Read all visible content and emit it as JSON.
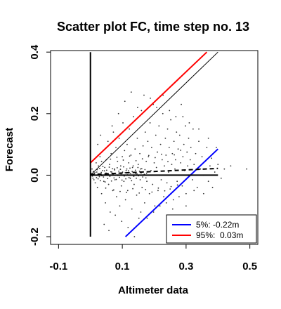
{
  "chart_data": {
    "type": "scatter",
    "title": "Scatter plot FC, time step no. 13",
    "xlabel": "Altimeter data",
    "ylabel": "Forecast",
    "xlim": [
      -0.125,
      0.525
    ],
    "ylim": [
      -0.225,
      0.405
    ],
    "xticks": [
      -0.1,
      0.1,
      0.3,
      0.5
    ],
    "xtick_labels": [
      "-0.1",
      "0.1",
      "0.3",
      "0.5"
    ],
    "yticks": [
      -0.2,
      0.0,
      0.2,
      0.4
    ],
    "ytick_labels": [
      "-0.2",
      "0.0",
      "0.2",
      "0.4"
    ],
    "grid": false,
    "legend_position": "bottom-right",
    "lines": [
      {
        "name": "5%: -0.22m",
        "color": "#0000ff",
        "x": [
          0.11,
          0.4
        ],
        "y": [
          -0.2,
          0.085
        ]
      },
      {
        "name": "95%:  0.03m",
        "color": "#ff0000",
        "x": [
          0.0,
          0.365
        ],
        "y": [
          0.04,
          0.4
        ]
      },
      {
        "color": "#000000",
        "style": "solid-thin",
        "x": [
          0.0,
          0.4
        ],
        "y": [
          0.0,
          0.4
        ]
      },
      {
        "color": "#000000",
        "style": "solid-thick",
        "x": [
          0.0,
          0.0
        ],
        "y": [
          -0.2,
          0.4
        ]
      },
      {
        "color": "#000000",
        "style": "solid-thick",
        "x": [
          0.0,
          0.4
        ],
        "y": [
          0.0,
          0.0
        ]
      },
      {
        "color": "#000000",
        "style": "dashed",
        "x": [
          0.0,
          0.4
        ],
        "y": [
          0.002,
          0.022
        ]
      }
    ],
    "points": [
      {
        "x": 0.005,
        "y": 0.02
      },
      {
        "x": 0.008,
        "y": -0.01
      },
      {
        "x": 0.012,
        "y": 0.005
      },
      {
        "x": 0.015,
        "y": -0.025
      },
      {
        "x": 0.018,
        "y": 0.04
      },
      {
        "x": 0.02,
        "y": 0.01
      },
      {
        "x": 0.022,
        "y": -0.04
      },
      {
        "x": 0.025,
        "y": 0.03
      },
      {
        "x": 0.028,
        "y": -0.005
      },
      {
        "x": 0.03,
        "y": 0.06
      },
      {
        "x": 0.033,
        "y": 0.0
      },
      {
        "x": 0.035,
        "y": -0.06
      },
      {
        "x": 0.038,
        "y": 0.015
      },
      {
        "x": 0.04,
        "y": 0.08
      },
      {
        "x": 0.042,
        "y": -0.02
      },
      {
        "x": 0.045,
        "y": 0.025
      },
      {
        "x": 0.047,
        "y": -0.09
      },
      {
        "x": 0.05,
        "y": 0.05
      },
      {
        "x": 0.052,
        "y": 0.005
      },
      {
        "x": 0.055,
        "y": 0.11
      },
      {
        "x": 0.057,
        "y": -0.03
      },
      {
        "x": 0.06,
        "y": 0.035
      },
      {
        "x": 0.062,
        "y": -0.12
      },
      {
        "x": 0.065,
        "y": 0.07
      },
      {
        "x": 0.067,
        "y": 0.01
      },
      {
        "x": 0.07,
        "y": -0.05
      },
      {
        "x": 0.072,
        "y": 0.14
      },
      {
        "x": 0.075,
        "y": 0.02
      },
      {
        "x": 0.077,
        "y": -0.015
      },
      {
        "x": 0.08,
        "y": 0.09
      },
      {
        "x": 0.082,
        "y": -0.07
      },
      {
        "x": 0.085,
        "y": 0.045
      },
      {
        "x": 0.087,
        "y": 0.0
      },
      {
        "x": 0.09,
        "y": 0.12
      },
      {
        "x": 0.092,
        "y": -0.1
      },
      {
        "x": 0.095,
        "y": 0.03
      },
      {
        "x": 0.097,
        "y": -0.035
      },
      {
        "x": 0.1,
        "y": 0.06
      },
      {
        "x": 0.102,
        "y": 0.17
      },
      {
        "x": 0.105,
        "y": -0.02
      },
      {
        "x": 0.107,
        "y": 0.08
      },
      {
        "x": 0.11,
        "y": -0.08
      },
      {
        "x": 0.112,
        "y": 0.015
      },
      {
        "x": 0.115,
        "y": 0.1
      },
      {
        "x": 0.117,
        "y": -0.05
      },
      {
        "x": 0.12,
        "y": 0.04
      },
      {
        "x": 0.122,
        "y": 0.15
      },
      {
        "x": 0.125,
        "y": -0.01
      },
      {
        "x": 0.127,
        "y": 0.065
      },
      {
        "x": 0.13,
        "y": -0.11
      },
      {
        "x": 0.132,
        "y": 0.025
      },
      {
        "x": 0.135,
        "y": 0.19
      },
      {
        "x": 0.137,
        "y": -0.03
      },
      {
        "x": 0.14,
        "y": 0.085
      },
      {
        "x": 0.142,
        "y": 0.005
      },
      {
        "x": 0.145,
        "y": -0.065
      },
      {
        "x": 0.147,
        "y": 0.12
      },
      {
        "x": 0.15,
        "y": 0.035
      },
      {
        "x": 0.152,
        "y": -0.14
      },
      {
        "x": 0.155,
        "y": 0.07
      },
      {
        "x": 0.157,
        "y": 0.02
      },
      {
        "x": 0.16,
        "y": 0.21
      },
      {
        "x": 0.162,
        "y": -0.04
      },
      {
        "x": 0.165,
        "y": 0.095
      },
      {
        "x": 0.167,
        "y": 0.0
      },
      {
        "x": 0.17,
        "y": -0.09
      },
      {
        "x": 0.172,
        "y": 0.14
      },
      {
        "x": 0.175,
        "y": 0.045
      },
      {
        "x": 0.177,
        "y": -0.02
      },
      {
        "x": 0.18,
        "y": 0.11
      },
      {
        "x": 0.182,
        "y": 0.06
      },
      {
        "x": 0.185,
        "y": -0.06
      },
      {
        "x": 0.187,
        "y": 0.17
      },
      {
        "x": 0.19,
        "y": 0.015
      },
      {
        "x": 0.192,
        "y": 0.09
      },
      {
        "x": 0.195,
        "y": -0.03
      },
      {
        "x": 0.197,
        "y": 0.23
      },
      {
        "x": 0.2,
        "y": 0.04
      },
      {
        "x": 0.202,
        "y": -0.1
      },
      {
        "x": 0.205,
        "y": 0.13
      },
      {
        "x": 0.207,
        "y": 0.025
      },
      {
        "x": 0.21,
        "y": 0.075
      },
      {
        "x": 0.212,
        "y": -0.05
      },
      {
        "x": 0.215,
        "y": 0.16
      },
      {
        "x": 0.217,
        "y": 0.0
      },
      {
        "x": 0.22,
        "y": 0.1
      },
      {
        "x": 0.222,
        "y": -0.015
      },
      {
        "x": 0.225,
        "y": 0.05
      },
      {
        "x": 0.227,
        "y": 0.2
      },
      {
        "x": 0.23,
        "y": -0.07
      },
      {
        "x": 0.232,
        "y": 0.03
      },
      {
        "x": 0.235,
        "y": 0.12
      },
      {
        "x": 0.237,
        "y": 0.065
      },
      {
        "x": 0.24,
        "y": -0.025
      },
      {
        "x": 0.242,
        "y": 0.15
      },
      {
        "x": 0.245,
        "y": 0.01
      },
      {
        "x": 0.247,
        "y": 0.09
      },
      {
        "x": 0.25,
        "y": -0.045
      },
      {
        "x": 0.252,
        "y": 0.18
      },
      {
        "x": 0.255,
        "y": 0.035
      },
      {
        "x": 0.257,
        "y": 0.07
      },
      {
        "x": 0.26,
        "y": -0.08
      },
      {
        "x": 0.262,
        "y": 0.11
      },
      {
        "x": 0.265,
        "y": 0.02
      },
      {
        "x": 0.267,
        "y": 0.05
      },
      {
        "x": 0.27,
        "y": 0.14
      },
      {
        "x": 0.272,
        "y": -0.02
      },
      {
        "x": 0.275,
        "y": 0.085
      },
      {
        "x": 0.278,
        "y": 0.0
      },
      {
        "x": 0.28,
        "y": 0.13
      },
      {
        "x": 0.283,
        "y": 0.04
      },
      {
        "x": 0.285,
        "y": 0.23
      },
      {
        "x": 0.288,
        "y": -0.035
      },
      {
        "x": 0.29,
        "y": 0.06
      },
      {
        "x": 0.293,
        "y": 0.1
      },
      {
        "x": 0.295,
        "y": 0.015
      },
      {
        "x": 0.298,
        "y": 0.16
      },
      {
        "x": 0.3,
        "y": -0.06
      },
      {
        "x": 0.303,
        "y": 0.075
      },
      {
        "x": 0.305,
        "y": 0.03
      },
      {
        "x": 0.308,
        "y": 0.12
      },
      {
        "x": 0.31,
        "y": 0.0
      },
      {
        "x": 0.313,
        "y": 0.05
      },
      {
        "x": 0.315,
        "y": 0.09
      },
      {
        "x": 0.32,
        "y": -0.015
      },
      {
        "x": 0.322,
        "y": 0.15
      },
      {
        "x": 0.325,
        "y": 0.035
      },
      {
        "x": 0.33,
        "y": 0.07
      },
      {
        "x": 0.335,
        "y": -0.04
      },
      {
        "x": 0.34,
        "y": 0.11
      },
      {
        "x": 0.345,
        "y": 0.02
      },
      {
        "x": 0.35,
        "y": 0.06
      },
      {
        "x": 0.355,
        "y": 0.0
      },
      {
        "x": 0.36,
        "y": 0.045
      },
      {
        "x": 0.365,
        "y": 0.09
      },
      {
        "x": 0.37,
        "y": -0.02
      },
      {
        "x": 0.375,
        "y": 0.03
      },
      {
        "x": 0.38,
        "y": 0.055
      },
      {
        "x": 0.39,
        "y": 0.01
      },
      {
        "x": 0.4,
        "y": 0.035
      },
      {
        "x": 0.41,
        "y": -0.01
      },
      {
        "x": 0.42,
        "y": 0.02
      },
      {
        "x": 0.44,
        "y": 0.03
      },
      {
        "x": 0.49,
        "y": 0.02
      },
      {
        "x": 0.003,
        "y": 0.005
      },
      {
        "x": 0.006,
        "y": -0.003
      },
      {
        "x": 0.009,
        "y": 0.012
      },
      {
        "x": 0.011,
        "y": -0.015
      },
      {
        "x": 0.014,
        "y": 0.008
      },
      {
        "x": 0.016,
        "y": 0.0
      },
      {
        "x": 0.019,
        "y": -0.008
      },
      {
        "x": 0.021,
        "y": 0.018
      },
      {
        "x": 0.024,
        "y": -0.012
      },
      {
        "x": 0.026,
        "y": 0.004
      },
      {
        "x": 0.029,
        "y": 0.022
      },
      {
        "x": 0.031,
        "y": -0.018
      },
      {
        "x": 0.034,
        "y": 0.009
      },
      {
        "x": 0.036,
        "y": -0.002
      },
      {
        "x": 0.039,
        "y": 0.028
      },
      {
        "x": 0.041,
        "y": -0.006
      },
      {
        "x": 0.044,
        "y": 0.014
      },
      {
        "x": 0.046,
        "y": -0.022
      },
      {
        "x": 0.049,
        "y": 0.007
      },
      {
        "x": 0.051,
        "y": 0.016
      },
      {
        "x": 0.054,
        "y": -0.011
      },
      {
        "x": 0.056,
        "y": 0.003
      },
      {
        "x": 0.059,
        "y": 0.026
      },
      {
        "x": 0.061,
        "y": -0.004
      },
      {
        "x": 0.064,
        "y": 0.011
      },
      {
        "x": 0.066,
        "y": -0.019
      },
      {
        "x": 0.069,
        "y": 0.021
      },
      {
        "x": 0.071,
        "y": 0.002
      },
      {
        "x": 0.074,
        "y": -0.009
      },
      {
        "x": 0.076,
        "y": 0.017
      },
      {
        "x": 0.079,
        "y": 0.006
      },
      {
        "x": 0.081,
        "y": -0.014
      },
      {
        "x": 0.084,
        "y": 0.024
      },
      {
        "x": 0.086,
        "y": -0.001
      },
      {
        "x": 0.089,
        "y": 0.013
      },
      {
        "x": 0.091,
        "y": -0.007
      },
      {
        "x": 0.094,
        "y": 0.019
      },
      {
        "x": 0.096,
        "y": 0.004
      },
      {
        "x": 0.099,
        "y": -0.016
      },
      {
        "x": 0.101,
        "y": 0.01
      },
      {
        "x": 0.104,
        "y": 0.027
      },
      {
        "x": 0.106,
        "y": -0.003
      },
      {
        "x": 0.109,
        "y": 0.008
      },
      {
        "x": 0.111,
        "y": -0.012
      },
      {
        "x": 0.114,
        "y": 0.02
      },
      {
        "x": 0.116,
        "y": 0.001
      },
      {
        "x": 0.119,
        "y": 0.014
      },
      {
        "x": 0.121,
        "y": -0.008
      },
      {
        "x": 0.124,
        "y": 0.023
      },
      {
        "x": 0.126,
        "y": 0.005
      },
      {
        "x": 0.129,
        "y": -0.018
      },
      {
        "x": 0.131,
        "y": 0.012
      },
      {
        "x": 0.134,
        "y": 0.03
      },
      {
        "x": 0.136,
        "y": -0.004
      },
      {
        "x": 0.139,
        "y": 0.009
      },
      {
        "x": 0.141,
        "y": 0.016
      },
      {
        "x": 0.144,
        "y": -0.01
      },
      {
        "x": 0.146,
        "y": 0.004
      },
      {
        "x": 0.149,
        "y": 0.025
      },
      {
        "x": 0.151,
        "y": -0.002
      },
      {
        "x": 0.154,
        "y": 0.013
      },
      {
        "x": 0.156,
        "y": -0.015
      },
      {
        "x": 0.159,
        "y": 0.007
      },
      {
        "x": 0.161,
        "y": 0.021
      },
      {
        "x": 0.164,
        "y": -0.006
      },
      {
        "x": 0.166,
        "y": 0.011
      },
      {
        "x": 0.169,
        "y": 0.003
      },
      {
        "x": 0.171,
        "y": 0.018
      },
      {
        "x": 0.174,
        "y": -0.009
      },
      {
        "x": 0.176,
        "y": 0.006
      },
      {
        "x": 0.023,
        "y": 0.1
      },
      {
        "x": 0.032,
        "y": 0.13
      },
      {
        "x": 0.043,
        "y": -0.16
      },
      {
        "x": 0.058,
        "y": -0.18
      },
      {
        "x": 0.068,
        "y": 0.16
      },
      {
        "x": 0.078,
        "y": -0.13
      },
      {
        "x": 0.088,
        "y": 0.2
      },
      {
        "x": 0.098,
        "y": -0.15
      },
      {
        "x": 0.108,
        "y": 0.24
      },
      {
        "x": 0.118,
        "y": -0.17
      },
      {
        "x": 0.128,
        "y": 0.27
      },
      {
        "x": 0.138,
        "y": -0.2
      },
      {
        "x": 0.148,
        "y": 0.22
      },
      {
        "x": 0.158,
        "y": -0.12
      },
      {
        "x": 0.168,
        "y": 0.26
      },
      {
        "x": 0.178,
        "y": -0.14
      },
      {
        "x": 0.188,
        "y": 0.25
      },
      {
        "x": 0.198,
        "y": -0.12
      },
      {
        "x": 0.208,
        "y": 0.22
      },
      {
        "x": 0.218,
        "y": -0.1
      },
      {
        "x": 0.228,
        "y": 0.26
      },
      {
        "x": 0.238,
        "y": -0.09
      },
      {
        "x": 0.248,
        "y": 0.21
      },
      {
        "x": 0.258,
        "y": -0.11
      },
      {
        "x": 0.268,
        "y": 0.19
      },
      {
        "x": 0.278,
        "y": -0.07
      },
      {
        "x": 0.29,
        "y": 0.19
      },
      {
        "x": 0.3,
        "y": -0.1
      },
      {
        "x": 0.31,
        "y": 0.17
      },
      {
        "x": 0.325,
        "y": -0.05
      },
      {
        "x": 0.34,
        "y": 0.15
      },
      {
        "x": 0.355,
        "y": -0.06
      },
      {
        "x": 0.37,
        "y": 0.12
      },
      {
        "x": 0.383,
        "y": -0.04
      },
      {
        "x": 0.395,
        "y": 0.09
      },
      {
        "x": 0.035,
        "y": 0.045
      },
      {
        "x": 0.048,
        "y": -0.042
      },
      {
        "x": 0.063,
        "y": 0.052
      },
      {
        "x": 0.073,
        "y": -0.048
      },
      {
        "x": 0.083,
        "y": 0.058
      },
      {
        "x": 0.093,
        "y": -0.053
      },
      {
        "x": 0.103,
        "y": 0.049
      },
      {
        "x": 0.113,
        "y": -0.056
      },
      {
        "x": 0.123,
        "y": 0.062
      },
      {
        "x": 0.133,
        "y": -0.044
      },
      {
        "x": 0.143,
        "y": 0.047
      },
      {
        "x": 0.153,
        "y": -0.058
      },
      {
        "x": 0.163,
        "y": 0.053
      },
      {
        "x": 0.173,
        "y": -0.047
      },
      {
        "x": 0.183,
        "y": 0.064
      },
      {
        "x": 0.193,
        "y": -0.055
      },
      {
        "x": 0.203,
        "y": 0.057
      },
      {
        "x": 0.213,
        "y": -0.042
      },
      {
        "x": 0.223,
        "y": 0.068
      },
      {
        "x": 0.233,
        "y": -0.051
      },
      {
        "x": 0.243,
        "y": 0.044
      },
      {
        "x": 0.253,
        "y": -0.037
      },
      {
        "x": 0.263,
        "y": 0.066
      },
      {
        "x": 0.273,
        "y": -0.032
      },
      {
        "x": 0.283,
        "y": 0.081
      }
    ]
  }
}
